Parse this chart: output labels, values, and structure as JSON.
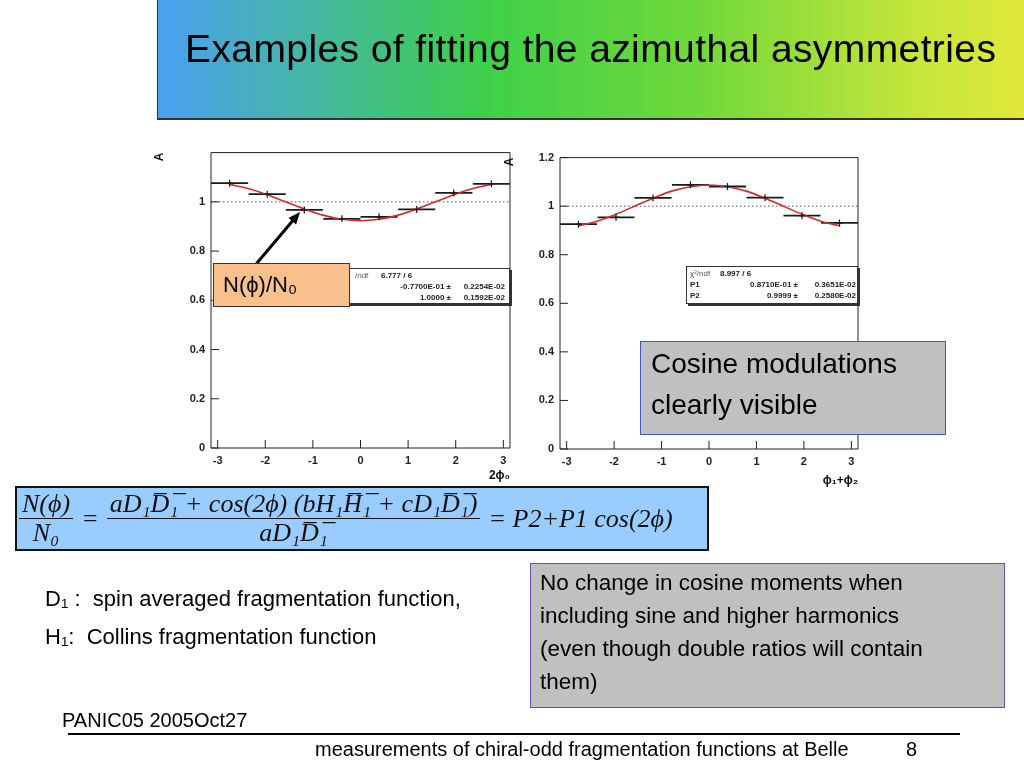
{
  "chart_data": [
    {
      "type": "scatter",
      "x": [
        -2.75,
        -1.96,
        -1.18,
        -0.39,
        0.39,
        1.18,
        1.96,
        2.75
      ],
      "series": [
        {
          "type": "scatter",
          "color": "#1a1a1a",
          "marker": "cross",
          "values": [
            1.076,
            1.031,
            0.967,
            0.931,
            0.939,
            0.969,
            1.036,
            1.073
          ],
          "xerrors": [
            0.39,
            0.39,
            0.39,
            0.39,
            0.39,
            0.39,
            0.39,
            0.39
          ],
          "errors": [
            0.005,
            0.005,
            0.005,
            0.005,
            0.005,
            0.005,
            0.005,
            0.005
          ]
        },
        {
          "type": "line",
          "color": "#d42a2a",
          "marker": "none",
          "x": [
            -2.75,
            -2.36,
            -1.96,
            -1.57,
            -1.18,
            -0.79,
            -0.39,
            0,
            0.39,
            0.79,
            1.18,
            1.57,
            1.96,
            2.36,
            2.75
          ],
          "values": [
            1.071,
            1.054,
            1.029,
            1.0,
            0.971,
            0.946,
            0.929,
            0.923,
            0.929,
            0.946,
            0.971,
            1.0,
            1.029,
            1.054,
            1.071
          ]
        }
      ],
      "xlabel": "2ϕ₀",
      "ylabel": "A",
      "xlim": [
        -3.14,
        3.14
      ],
      "xticks": [
        -3,
        -2,
        -1,
        0,
        1,
        2,
        3
      ],
      "ylim": [
        0,
        1.2
      ],
      "yticks": [
        0,
        0.2,
        0.4,
        0.6,
        0.8,
        1
      ],
      "ref_lines": [
        {
          "axis": "y",
          "value": 1,
          "color": "#555555",
          "line_style": "dotted"
        }
      ],
      "annotations": [
        {
          "text": "N(ϕ)/N₀",
          "x": -1.27,
          "y": 0.96
        },
        "/ndf\t6.777 / 6",
        "\t-0.7700E-01 ±\t0.2254E-02",
        "\t1.0000 ±\t0.1592E-02"
      ]
    },
    {
      "type": "scatter",
      "x": [
        -2.75,
        -1.96,
        -1.18,
        -0.39,
        0.39,
        1.18,
        1.96,
        2.75
      ],
      "series": [
        {
          "type": "scatter",
          "color": "#1a1a1a",
          "marker": "cross",
          "values": [
            0.926,
            0.954,
            1.034,
            1.088,
            1.081,
            1.035,
            0.961,
            0.931
          ],
          "xerrors": [
            0.39,
            0.39,
            0.39,
            0.39,
            0.39,
            0.39,
            0.39,
            0.39
          ],
          "errors": [
            0.005,
            0.005,
            0.005,
            0.005,
            0.005,
            0.005,
            0.005,
            0.005
          ]
        },
        {
          "type": "line",
          "color": "#d42a2a",
          "marker": "none",
          "x": [
            -2.75,
            -2.36,
            -1.96,
            -1.57,
            -1.18,
            -0.79,
            -0.39,
            0,
            0.39,
            0.79,
            1.18,
            1.57,
            1.96,
            2.36,
            2.75
          ],
          "values": [
            0.919,
            0.938,
            0.967,
            1.0,
            1.033,
            1.062,
            1.08,
            1.087,
            1.08,
            1.062,
            1.033,
            1.0,
            0.967,
            0.938,
            0.919
          ]
        }
      ],
      "xlabel": "ϕ₁+ϕ₂",
      "ylabel": "A",
      "xlim": [
        -3.14,
        3.14
      ],
      "xticks": [
        -3,
        -2,
        -1,
        0,
        1,
        2,
        3
      ],
      "ylim": [
        0,
        1.2
      ],
      "yticks": [
        0,
        0.2,
        0.4,
        0.6,
        0.8,
        1,
        1.2
      ],
      "ref_lines": [
        {
          "axis": "y",
          "value": 1,
          "color": "#555555",
          "line_style": "dotted"
        }
      ],
      "annotations": [
        "χ²/ndf\t8.997 / 6",
        "P1\t0.8710E-01 ±\t0.3651E-02",
        "P2\t0.9999 ±\t0.2580E-02"
      ]
    },
    {
      "type": "other",
      "title": "Examples of fitting the azimuthal asymmetries",
      "annotations": [
        "Cosine modulations clearly visible",
        "N(ϕ)",
        "N₀",
        "=",
        "aD₁D̅₁̅ + cos(2ϕ) (bH₁H̅₁̅ + cD₁D̅₁̅)",
        "aD₁D̅₁̅",
        "= P2+P1 cos(2ϕ)",
        "D₁ :  spin averaged fragmentation function,",
        "H₁:  Collins fragmentation function",
        "No change in cosine moments when including sine and higher harmonics (even though double ratios will contain them)",
        "PANIC05 2005Oct27",
        "measurements of chiral-odd fragmentation functions at Belle",
        "8"
      ]
    }
  ]
}
